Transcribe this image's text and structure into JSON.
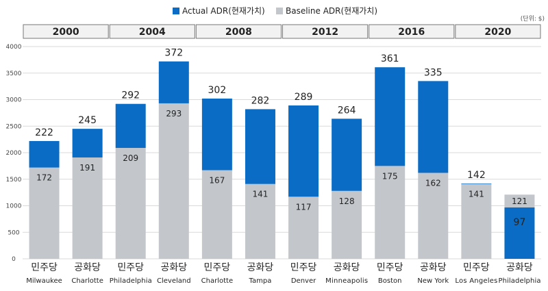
{
  "chart_data": {
    "type": "bar",
    "stacked": true,
    "legend": {
      "actual": "Actual ADR(현재가치)",
      "baseline": "Baseline ADR(현재가치)"
    },
    "unit": "(단위: $)",
    "ylim": [
      0,
      4000
    ],
    "yticks": [
      "0",
      "500",
      "1000",
      "1500",
      "2000",
      "2500",
      "3000",
      "3500",
      "4000"
    ],
    "years": [
      "2000",
      "2004",
      "2008",
      "2012",
      "2016",
      "2020"
    ],
    "bars": [
      {
        "party": "민주당",
        "city": "Milwaukee",
        "baseline": 172,
        "actual": 222
      },
      {
        "party": "공화당",
        "city": "Charlotte",
        "baseline": 191,
        "actual": 245
      },
      {
        "party": "민주당",
        "city": "Philadelphia",
        "baseline": 209,
        "actual": 292
      },
      {
        "party": "공화당",
        "city": "Cleveland",
        "baseline": 293,
        "actual": 372
      },
      {
        "party": "민주당",
        "city": "Charlotte",
        "baseline": 167,
        "actual": 302
      },
      {
        "party": "공화당",
        "city": "Tampa",
        "baseline": 141,
        "actual": 282
      },
      {
        "party": "민주당",
        "city": "Denver",
        "baseline": 117,
        "actual": 289
      },
      {
        "party": "공화당",
        "city": "Minneapolis",
        "baseline": 128,
        "actual": 264
      },
      {
        "party": "민주당",
        "city": "Boston",
        "baseline": 175,
        "actual": 361
      },
      {
        "party": "공화당",
        "city": "New York",
        "baseline": 162,
        "actual": 335
      },
      {
        "party": "민주당",
        "city": "Los Angeles",
        "baseline": 141,
        "actual": 142
      },
      {
        "party": "공화당",
        "city": "Philadelphia",
        "baseline": 121,
        "actual": 97
      }
    ],
    "colors": {
      "actual": "#0a6cc4",
      "baseline": "#c3c7cc"
    }
  }
}
